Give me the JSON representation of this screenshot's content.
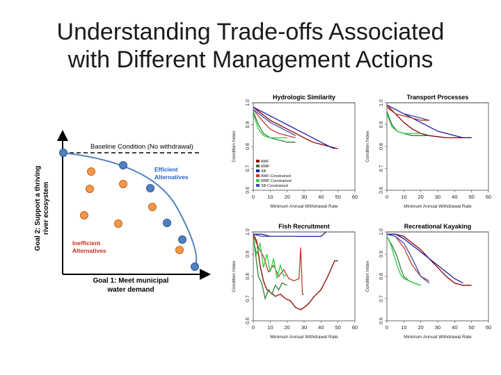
{
  "slide": {
    "title_line1": "Understanding Trade-offs Associated",
    "title_line2": "with Different Management Actions"
  },
  "concept": {
    "baseline_label": "Baseline Condition (No withdrawal)",
    "efficient_label_1": "Efficient",
    "efficient_label_2": "Alternatives",
    "inefficient_label_1": "Inefficient",
    "inefficient_label_2": "Alternatives",
    "ylabel_1": "Goal 2: Support a thriving",
    "ylabel_2": "river ecosystem",
    "xlabel_1": "Goal 1: Meet municipal",
    "xlabel_2": "water demand",
    "colors": {
      "frontier_point": "#4f81bd",
      "inefficient_point": "#f79646",
      "curve": "#4f81bd",
      "efficient_text": "#1f5fbf",
      "inefficient_text": "#cc2a1a"
    }
  },
  "chart_data": [
    {
      "type": "line",
      "title": "Hydrologic Similarity",
      "xlabel": "Minimum Annual Withdrawal Rate",
      "ylabel": "Condition Index",
      "xlim": [
        0,
        60
      ],
      "ylim": [
        0.6,
        1.0
      ],
      "xticks": [
        "0",
        "10",
        "20",
        "30",
        "40",
        "50",
        "60"
      ],
      "yticks": [
        "0.6",
        "0.7",
        "0.8",
        "0.9",
        "1.0"
      ],
      "baseline": 1.0,
      "legend": [
        "AMF",
        "MMF",
        "SB",
        "AMF-Constrained",
        "MMF Constrained",
        "SB-Constrained"
      ],
      "legend_position": "bottom-left",
      "series": [
        {
          "name": "AMF",
          "color": "#8b0000",
          "x": [
            0,
            5,
            10,
            15,
            20,
            25,
            30,
            35,
            40,
            45,
            50
          ],
          "y": [
            0.98,
            0.95,
            0.92,
            0.9,
            0.88,
            0.86,
            0.84,
            0.82,
            0.81,
            0.8,
            0.79
          ]
        },
        {
          "name": "MMF",
          "color": "#2e7d32",
          "x": [
            0,
            3,
            6,
            10,
            15,
            20,
            25
          ],
          "y": [
            0.96,
            0.9,
            0.86,
            0.84,
            0.83,
            0.82,
            0.82
          ]
        },
        {
          "name": "SB",
          "color": "#1a1a9c",
          "x": [
            0,
            5,
            10,
            15,
            20,
            25,
            30,
            35,
            40,
            45,
            48
          ],
          "y": [
            0.98,
            0.96,
            0.94,
            0.92,
            0.9,
            0.88,
            0.86,
            0.84,
            0.82,
            0.8,
            0.79
          ]
        },
        {
          "name": "AMF-Constrained",
          "color": "#c0392b",
          "x": [
            0,
            5,
            10,
            15,
            20,
            25
          ],
          "y": [
            0.97,
            0.92,
            0.88,
            0.86,
            0.85,
            0.84
          ]
        },
        {
          "name": "MMF Constrained",
          "color": "#2ecc40",
          "x": [
            0,
            3,
            6,
            10,
            15,
            20
          ],
          "y": [
            0.95,
            0.88,
            0.85,
            0.84,
            0.84,
            0.84
          ]
        },
        {
          "name": "SB-Constrained",
          "color": "#3949ab",
          "x": [
            0,
            5,
            10,
            15,
            20,
            25
          ],
          "y": [
            0.97,
            0.94,
            0.91,
            0.89,
            0.87,
            0.85
          ]
        }
      ]
    },
    {
      "type": "line",
      "title": "Transport Processes",
      "xlabel": "Minimum Annual Withdrawal Rate",
      "ylabel": "Condition Index",
      "xlim": [
        0,
        60
      ],
      "ylim": [
        0.6,
        1.0
      ],
      "xticks": [
        "0",
        "10",
        "20",
        "30",
        "40",
        "50",
        "60"
      ],
      "yticks": [
        "0.6",
        "0.7",
        "0.8",
        "0.9",
        "1.0"
      ],
      "baseline": 1.0,
      "series": [
        {
          "name": "AMF",
          "color": "#8b0000",
          "x": [
            0,
            5,
            10,
            15,
            20,
            25,
            30,
            35,
            40,
            45,
            50
          ],
          "y": [
            0.99,
            0.95,
            0.91,
            0.88,
            0.86,
            0.85,
            0.845,
            0.84,
            0.84,
            0.84,
            0.84
          ]
        },
        {
          "name": "MMF",
          "color": "#2e7d32",
          "x": [
            0,
            3,
            6,
            10,
            15,
            20,
            25
          ],
          "y": [
            0.96,
            0.9,
            0.87,
            0.86,
            0.85,
            0.85,
            0.85
          ]
        },
        {
          "name": "SB",
          "color": "#1a1a9c",
          "x": [
            0,
            5,
            10,
            15,
            20,
            25,
            30,
            35,
            40,
            45,
            50
          ],
          "y": [
            0.99,
            0.97,
            0.95,
            0.93,
            0.91,
            0.89,
            0.87,
            0.86,
            0.85,
            0.84,
            0.84
          ]
        },
        {
          "name": "AMF-Constrained",
          "color": "#c0392b",
          "x": [
            0,
            5,
            10,
            15,
            20,
            25
          ],
          "y": [
            0.98,
            0.95,
            0.94,
            0.93,
            0.92,
            0.92
          ]
        },
        {
          "name": "MMF Constrained",
          "color": "#2ecc40",
          "x": [
            0,
            3,
            6,
            10,
            15,
            20
          ],
          "y": [
            0.95,
            0.89,
            0.87,
            0.86,
            0.86,
            0.86
          ]
        },
        {
          "name": "SB-Constrained",
          "color": "#3949ab",
          "x": [
            0,
            5,
            10,
            15,
            20,
            25
          ],
          "y": [
            0.99,
            0.97,
            0.95,
            0.94,
            0.93,
            0.92
          ]
        }
      ]
    },
    {
      "type": "line",
      "title": "Fish Recruitment",
      "xlabel": "Minimum Annual Withdrawal Rate",
      "ylabel": "Condition Index",
      "xlim": [
        0,
        60
      ],
      "ylim": [
        0.6,
        1.0
      ],
      "xticks": [
        "0",
        "10",
        "20",
        "30",
        "40",
        "50",
        "60"
      ],
      "yticks": [
        "0.6",
        "0.7",
        "0.8",
        "0.9",
        "1.0"
      ],
      "baseline": 1.0,
      "series": [
        {
          "name": "AMF",
          "color": "#8b0000",
          "x": [
            0,
            2,
            4,
            6,
            8,
            10,
            13,
            16,
            19,
            22,
            25,
            28,
            30,
            33,
            36,
            40,
            44,
            48,
            50
          ],
          "y": [
            0.99,
            0.96,
            0.85,
            0.78,
            0.74,
            0.73,
            0.71,
            0.72,
            0.7,
            0.69,
            0.66,
            0.65,
            0.66,
            0.68,
            0.71,
            0.74,
            0.8,
            0.87,
            0.87
          ]
        },
        {
          "name": "MMF",
          "color": "#2e7d32",
          "x": [
            0,
            2,
            3,
            5,
            7,
            9,
            11,
            13,
            15,
            17,
            20
          ],
          "y": [
            0.98,
            0.86,
            0.8,
            0.77,
            0.7,
            0.74,
            0.72,
            0.76,
            0.74,
            0.77,
            0.76
          ]
        },
        {
          "name": "SB",
          "color": "#1a1a9c",
          "x": [
            0,
            5,
            10,
            15,
            20,
            25,
            30,
            35,
            40,
            43
          ],
          "y": [
            0.99,
            0.99,
            0.98,
            0.98,
            0.98,
            0.98,
            0.98,
            0.98,
            0.98,
            1.0
          ]
        },
        {
          "name": "AMF-Constrained",
          "color": "#c0392b",
          "x": [
            0,
            3,
            6,
            9,
            12,
            15,
            18,
            21,
            24,
            27,
            28,
            29,
            30
          ],
          "y": [
            0.98,
            0.93,
            0.89,
            0.82,
            0.85,
            0.8,
            0.83,
            0.79,
            0.78,
            0.79,
            0.93,
            0.72,
            0.72
          ]
        },
        {
          "name": "MMF Constrained",
          "color": "#2ecc40",
          "x": [
            0,
            2,
            4,
            6,
            8,
            10,
            12,
            14,
            16,
            18,
            20
          ],
          "y": [
            0.97,
            0.9,
            0.95,
            0.84,
            0.9,
            0.82,
            0.88,
            0.79,
            0.85,
            0.8,
            0.81
          ]
        },
        {
          "name": "SB-Constrained",
          "color": "#3949ab",
          "x": [
            0,
            5,
            10,
            15,
            20,
            25
          ],
          "y": [
            0.99,
            0.98,
            0.98,
            0.98,
            0.98,
            0.98
          ]
        }
      ]
    },
    {
      "type": "line",
      "title": "Recreational Kayaking",
      "xlabel": "Minimum Annual Withdrawal Rate",
      "ylabel": "Condition Index",
      "xlim": [
        0,
        60
      ],
      "ylim": [
        0.6,
        1.0
      ],
      "xticks": [
        "0",
        "10",
        "20",
        "30",
        "40",
        "50",
        "60"
      ],
      "yticks": [
        "0.6",
        "0.7",
        "0.8",
        "0.9",
        "1.0"
      ],
      "baseline": 1.0,
      "series": [
        {
          "name": "AMF",
          "color": "#8b0000",
          "x": [
            0,
            5,
            10,
            15,
            20,
            25,
            30,
            35,
            40,
            45,
            50
          ],
          "y": [
            0.99,
            0.99,
            0.98,
            0.95,
            0.92,
            0.88,
            0.84,
            0.8,
            0.77,
            0.76,
            0.76
          ]
        },
        {
          "name": "MMF",
          "color": "#2e7d32",
          "x": [
            0,
            3,
            6,
            8,
            10,
            13,
            16,
            20
          ],
          "y": [
            0.98,
            0.94,
            0.89,
            0.84,
            0.8,
            0.78,
            0.77,
            0.76
          ]
        },
        {
          "name": "SB",
          "color": "#1a1a9c",
          "x": [
            0,
            5,
            10,
            15,
            20,
            25,
            30,
            35,
            40,
            45
          ],
          "y": [
            0.99,
            0.99,
            0.97,
            0.94,
            0.91,
            0.88,
            0.85,
            0.82,
            0.79,
            0.77
          ]
        },
        {
          "name": "AMF-Constrained",
          "color": "#c0392b",
          "x": [
            0,
            5,
            10,
            15,
            20,
            25
          ],
          "y": [
            0.99,
            0.98,
            0.93,
            0.85,
            0.8,
            0.78
          ]
        },
        {
          "name": "MMF Constrained",
          "color": "#2ecc40",
          "x": [
            0,
            2,
            4,
            6,
            8,
            10,
            13,
            16,
            20
          ],
          "y": [
            0.98,
            0.95,
            0.9,
            0.85,
            0.81,
            0.79,
            0.78,
            0.77,
            0.76
          ]
        },
        {
          "name": "SB-Constrained",
          "color": "#3949ab",
          "x": [
            0,
            5,
            10,
            15,
            20,
            25
          ],
          "y": [
            0.99,
            0.98,
            0.95,
            0.88,
            0.8,
            0.77
          ]
        }
      ]
    }
  ]
}
